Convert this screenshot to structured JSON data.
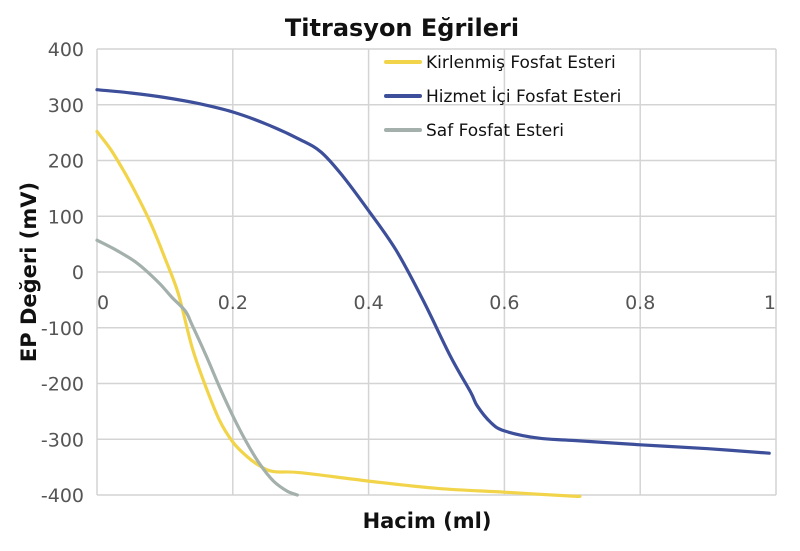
{
  "chart_data": {
    "type": "line",
    "title": "Titrasyon Eğrileri",
    "xlabel": "Hacim (ml)",
    "ylabel": "EP Değeri (mV)",
    "xlim": [
      0,
      1
    ],
    "ylim": [
      -400,
      400
    ],
    "x_ticks": [
      0,
      0.2,
      0.4,
      0.6,
      0.8,
      1
    ],
    "x_tick_labels": [
      "0",
      "0.2",
      "0.4",
      "0.6",
      "0.8",
      "1"
    ],
    "y_ticks": [
      400,
      300,
      200,
      100,
      0,
      -100,
      -200,
      -300,
      -400
    ],
    "y_tick_labels": [
      "400",
      "300",
      "200",
      "100",
      "0",
      "-100",
      "-200",
      "-300",
      "-400"
    ],
    "grid": true,
    "legend_position": "top-right",
    "colors": {
      "grid": "#d4d4d4",
      "axis_text": "#555555"
    },
    "series": [
      {
        "name": "Kirlenmiş Fosfat Esteri",
        "color": "#f2d44a",
        "x": [
          0,
          0.02,
          0.04,
          0.06,
          0.08,
          0.1,
          0.12,
          0.14,
          0.16,
          0.18,
          0.2,
          0.22,
          0.24,
          0.26,
          0.3,
          0.4,
          0.5,
          0.6,
          0.7,
          0.71
        ],
        "y": [
          252,
          220,
          180,
          135,
          85,
          25,
          -40,
          -135,
          -205,
          -265,
          -305,
          -330,
          -348,
          -358,
          -360,
          -375,
          -388,
          -395,
          -402,
          -402
        ]
      },
      {
        "name": "Hizmet İçi Fosfat Esteri",
        "color": "#3d4f9a",
        "x": [
          0,
          0.05,
          0.1,
          0.15,
          0.2,
          0.25,
          0.3,
          0.33,
          0.36,
          0.4,
          0.44,
          0.48,
          0.52,
          0.55,
          0.56,
          0.58,
          0.6,
          0.65,
          0.7,
          0.8,
          0.9,
          0.99
        ],
        "y": [
          327,
          321,
          313,
          302,
          287,
          265,
          237,
          215,
          175,
          110,
          40,
          -50,
          -150,
          -215,
          -240,
          -270,
          -285,
          -298,
          -302,
          -310,
          -317,
          -325
        ]
      },
      {
        "name": "Saf Fosfat Esteri",
        "color": "#a3b0ac",
        "x": [
          0,
          0.03,
          0.06,
          0.09,
          0.11,
          0.13,
          0.14,
          0.16,
          0.18,
          0.2,
          0.22,
          0.24,
          0.26,
          0.28,
          0.295
        ],
        "y": [
          57,
          38,
          15,
          -18,
          -45,
          -70,
          -95,
          -148,
          -205,
          -258,
          -305,
          -345,
          -375,
          -393,
          -400
        ]
      }
    ]
  }
}
